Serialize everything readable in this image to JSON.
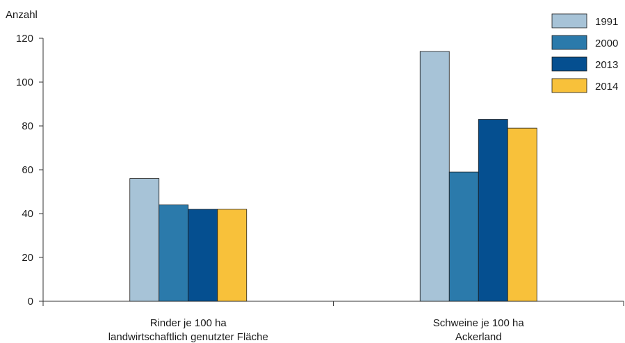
{
  "chart_data": {
    "type": "bar",
    "ylabel": "Anzahl",
    "ylim": [
      0,
      120
    ],
    "yticks": [
      0,
      20,
      40,
      60,
      80,
      100,
      120
    ],
    "categories": [
      [
        "Rinder je 100 ha",
        "landwirtschaftlich genutzter Fläche"
      ],
      [
        "Schweine je 100 ha",
        "Ackerland"
      ]
    ],
    "series": [
      {
        "name": "1991",
        "color": "#a7c3d7",
        "values": [
          56,
          114
        ]
      },
      {
        "name": "2000",
        "color": "#2b7aab",
        "values": [
          44,
          59
        ]
      },
      {
        "name": "2013",
        "color": "#054f90",
        "values": [
          42,
          83
        ]
      },
      {
        "name": "2014",
        "color": "#f8c13a",
        "values": [
          42,
          79
        ]
      }
    ],
    "grid": false,
    "legend": "top-right"
  }
}
